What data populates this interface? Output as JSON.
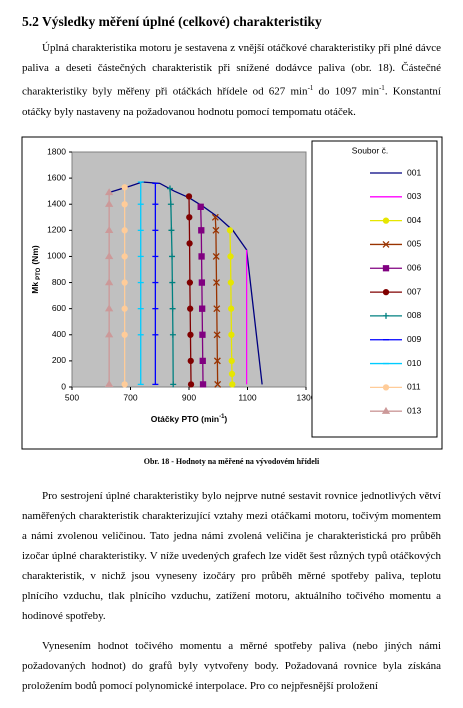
{
  "document": {
    "heading": "5.2 Výsledky měření úplné (celkové) charakteristiky",
    "paragraph_1": [
      "Úplná charakteristika motoru je sestavena z vnější otáčkové charakteristiky při plné dávce paliva a deseti částečných charakteristik při snížené dodávce paliva (obr. 18). Částečné charakteristiky byly měřeny při otáčkách hřídele od 627 min",
      "-1",
      " do 1097 min",
      "-1",
      ". Konstantní otáčky byly nastaveny na požadovanou hodnotu pomocí tempomatu otáček."
    ],
    "caption": "Obr. 18 - Hodnoty na měřené na vývodovém hřídeli",
    "paragraph_2": "Pro sestrojení úplné charakteristiky bylo nejprve nutné sestavit rovnice jednotlivých větví naměřených charakteristik charakterizující vztahy mezi otáčkami motoru, točivým momentem a námi zvolenou veličinou. Tato jedna námi zvolená veličina je charakteristická pro průběh izočar úplné charakteristiky. V níže uvedených grafech lze vidět šest různých typů otáčkových charakteristik, v nichž jsou vyneseny izočáry pro průběh měrné spotřeby paliva, teplotu plnícího vzduchu, tlak plnícího vzduchu, zatížení motoru, aktuálního točivého momentu a hodinové spotřeby.",
    "paragraph_3": "Vynesením hodnot točivého momentu a měrné spotřeby paliva (nebo jiných námi požadovaných hodnot) do grafů byly vytvořeny body. Požadovaná rovnice byla získána proložením bodů pomocí polynomické interpolace. Pro co nejpřesnější proložení"
  },
  "chart_data": {
    "type": "line",
    "y_label": [
      "Mk",
      "PTO",
      "(Nm)"
    ],
    "x_label": [
      "Otáčky PTO  (min",
      "-1",
      ")"
    ],
    "legend_title": "Soubor č.",
    "xlim": [
      500,
      1300
    ],
    "xticks": [
      500,
      700,
      900,
      1100,
      1300
    ],
    "ylim": [
      0,
      1800
    ],
    "yticks": [
      0,
      200,
      400,
      600,
      800,
      1000,
      1200,
      1400,
      1600,
      1800
    ],
    "grid": false,
    "legend": "right",
    "plot_background": "#c0c0c0",
    "series": [
      {
        "name": "001",
        "color": "#000080",
        "marker": "none",
        "x": [
          627,
          700,
          740,
          800,
          850,
          900,
          950,
          1000,
          1050,
          1097,
          1150
        ],
        "values": [
          1490,
          1540,
          1570,
          1560,
          1500,
          1450,
          1380,
          1300,
          1200,
          1050,
          20
        ]
      },
      {
        "name": "003",
        "color": "#ff00ff",
        "marker": "none",
        "x": [
          1097,
          1097,
          1097,
          1097,
          1097,
          1097,
          1097
        ],
        "values": [
          1050,
          800,
          600,
          400,
          200,
          100,
          20
        ]
      },
      {
        "name": "004",
        "color": "#e6e600",
        "marker": "circle",
        "x": [
          1040,
          1042,
          1043,
          1044,
          1045,
          1046,
          1047,
          1048
        ],
        "values": [
          1200,
          1000,
          800,
          600,
          400,
          200,
          100,
          20
        ]
      },
      {
        "name": "005",
        "color": "#993300",
        "marker": "cross",
        "x": [
          990,
          992,
          993,
          994,
          995,
          996,
          997,
          998
        ],
        "values": [
          1300,
          1200,
          1000,
          800,
          600,
          400,
          200,
          20
        ]
      },
      {
        "name": "006",
        "color": "#800080",
        "marker": "square",
        "x": [
          940,
          942,
          943,
          944,
          945,
          946,
          947,
          948
        ],
        "values": [
          1380,
          1200,
          1000,
          800,
          600,
          400,
          200,
          20
        ]
      },
      {
        "name": "007",
        "color": "#800000",
        "marker": "circle",
        "x": [
          900,
          901,
          902,
          903,
          904,
          905,
          906,
          907
        ],
        "values": [
          1460,
          1300,
          1100,
          800,
          600,
          400,
          200,
          20
        ]
      },
      {
        "name": "008",
        "color": "#008080",
        "marker": "plus",
        "x": [
          835,
          838,
          840,
          842,
          843,
          844,
          845,
          846
        ],
        "values": [
          1520,
          1400,
          1200,
          1000,
          800,
          600,
          400,
          20
        ]
      },
      {
        "name": "009",
        "color": "#0000ff",
        "marker": "dash",
        "x": [
          785,
          785,
          785,
          785,
          785,
          785,
          785,
          785
        ],
        "values": [
          1560,
          1400,
          1200,
          1000,
          800,
          600,
          400,
          20
        ]
      },
      {
        "name": "010",
        "color": "#00ccff",
        "marker": "dash",
        "x": [
          735,
          735,
          735,
          735,
          735,
          735,
          735,
          735
        ],
        "values": [
          1570,
          1400,
          1200,
          1000,
          800,
          600,
          400,
          20
        ]
      },
      {
        "name": "011",
        "color": "#ffcc99",
        "marker": "circle",
        "x": [
          680,
          680,
          680,
          680,
          680,
          680,
          680,
          680
        ],
        "values": [
          1530,
          1400,
          1200,
          1000,
          800,
          600,
          400,
          20
        ]
      },
      {
        "name": "013",
        "color": "#cc9999",
        "marker": "triangle",
        "x": [
          627,
          627,
          627,
          627,
          627,
          627,
          627,
          627
        ],
        "values": [
          1490,
          1400,
          1200,
          1000,
          800,
          600,
          400,
          20
        ]
      }
    ]
  }
}
